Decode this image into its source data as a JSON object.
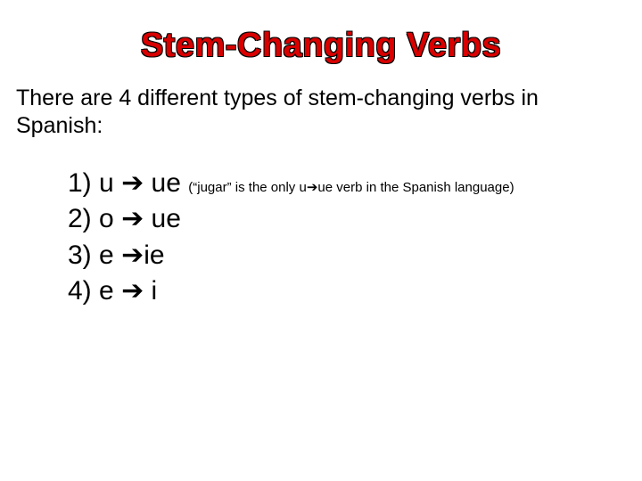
{
  "title": {
    "text": "Stem-Changing Verbs",
    "color": "#d90000",
    "stroke_color": "#000000",
    "fontsize": 38
  },
  "intro": "There are 4 different types of stem-changing verbs in Spanish:",
  "arrow_glyph": "➔",
  "items": [
    {
      "num": "1)",
      "from": "u",
      "to": "ue",
      "note_pre": "(“jugar” is the only u",
      "note_post": "ue verb in the Spanish language)"
    },
    {
      "num": "2)",
      "from": "o",
      "to": "ue",
      "note_pre": null,
      "note_post": null
    },
    {
      "num": "3)",
      "from": "e",
      "to": "ie",
      "note_pre": null,
      "note_post": null
    },
    {
      "num": "4)",
      "from": "e",
      "to": "i",
      "note_pre": null,
      "note_post": null
    }
  ],
  "colors": {
    "background": "#ffffff",
    "text": "#000000"
  }
}
